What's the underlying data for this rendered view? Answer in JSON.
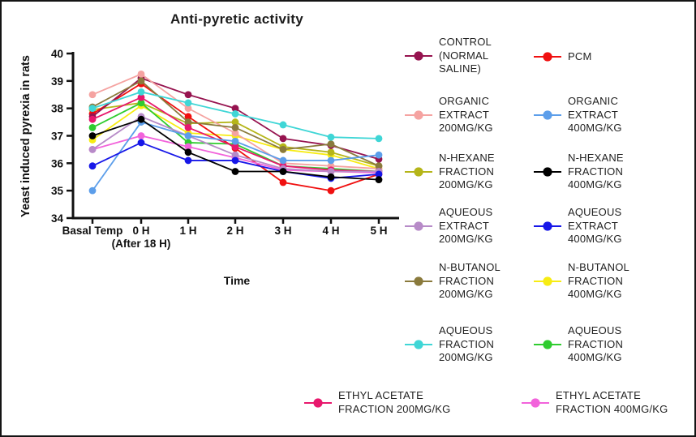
{
  "chart_data": {
    "type": "line",
    "title": "Anti-pyretic activity",
    "xlabel": "Time",
    "ylabel": "Yeast induced pyrexia in rats",
    "ylim": [
      34,
      40
    ],
    "yticks": [
      40,
      39,
      38,
      37,
      36,
      35,
      34
    ],
    "grid": false,
    "legend_position": "right",
    "categories": [
      "Basal Temp",
      "0 H (After 18 H)",
      "1 H",
      "2 H",
      "3 H",
      "4 H",
      "5 H"
    ],
    "xtick_lines": [
      [
        "Basal Temp"
      ],
      [
        "0 H",
        "(After 18 H)"
      ],
      [
        "1 H"
      ],
      [
        "2 H"
      ],
      [
        "3 H"
      ],
      [
        "4 H"
      ],
      [
        "5 H"
      ]
    ],
    "series": [
      {
        "key": "control",
        "name": "CONTROL (NORMAL SALINE)",
        "color": "#96134F",
        "values": [
          37.7,
          39.1,
          38.5,
          38.0,
          36.9,
          36.65,
          36.15
        ]
      },
      {
        "key": "pcm",
        "name": "PCM",
        "color": "#F01010",
        "values": [
          37.8,
          38.9,
          37.7,
          36.55,
          35.3,
          35.0,
          35.6
        ]
      },
      {
        "key": "organic200",
        "name": "ORGANIC EXTRACT 200MG/KG",
        "color": "#F5A3A1",
        "values": [
          38.5,
          39.25,
          38.0,
          37.1,
          36.0,
          35.9,
          35.8
        ]
      },
      {
        "key": "organic400",
        "name": "ORGANIC EXTRACT 400MG/KG",
        "color": "#5C9EEA",
        "values": [
          35.0,
          37.5,
          37.0,
          36.8,
          36.1,
          36.1,
          36.3
        ]
      },
      {
        "key": "nhexane200",
        "name": "N-HEXANE FRACTION 200MG/KG",
        "color": "#B5B519",
        "values": [
          37.95,
          38.2,
          37.45,
          37.5,
          36.6,
          36.4,
          35.9
        ]
      },
      {
        "key": "nhexane400",
        "name": "N-HEXANE FRACTION 400MG/KG",
        "color": "#000000",
        "values": [
          37.0,
          37.6,
          36.4,
          35.7,
          35.7,
          35.5,
          35.4
        ]
      },
      {
        "key": "aqextract200",
        "name": "AQUEOUS EXTRACT 200MG/KG",
        "color": "#B78BC8",
        "values": [
          36.5,
          37.7,
          37.0,
          36.3,
          35.8,
          35.7,
          35.7
        ]
      },
      {
        "key": "aqextract400",
        "name": "AQUEOUS EXTRACT 400MG/KG",
        "color": "#1717E8",
        "values": [
          35.9,
          36.75,
          36.1,
          36.1,
          35.7,
          35.45,
          35.6
        ]
      },
      {
        "key": "nbutanol200",
        "name": "N-BUTANOL FRACTION 200MG/KG",
        "color": "#8A7A3C",
        "values": [
          38.05,
          39.0,
          37.5,
          37.3,
          36.5,
          36.7,
          35.9
        ]
      },
      {
        "key": "nbutanol400",
        "name": "N-BUTANOL FRACTION 400MG/KG",
        "color": "#F7EC13",
        "values": [
          36.85,
          38.1,
          37.1,
          37.0,
          36.5,
          36.3,
          35.8
        ]
      },
      {
        "key": "aqfraction200",
        "name": "AQUEOUS FRACTION 200MG/KG",
        "color": "#3FD6D6",
        "values": [
          38.0,
          38.6,
          38.2,
          37.8,
          37.4,
          36.95,
          36.9
        ]
      },
      {
        "key": "aqfraction400",
        "name": "AQUEOUS FRACTION 400MG/KG",
        "color": "#2FCC2F",
        "values": [
          37.3,
          38.2,
          36.75,
          36.7,
          35.9,
          35.8,
          35.7
        ]
      },
      {
        "key": "ethyl200",
        "name": "ETHYL ACETATE FRACTION 200MG/KG",
        "color": "#E8186D",
        "values": [
          37.6,
          38.4,
          37.3,
          36.6,
          35.9,
          35.75,
          35.7
        ]
      },
      {
        "key": "ethyl400",
        "name": "ETHYL ACETATE FRACTION 400MG/KG",
        "color": "#F263DB",
        "values": [
          36.5,
          37.0,
          36.6,
          36.2,
          35.75,
          35.7,
          35.65
        ]
      }
    ]
  },
  "legend": {
    "items": [
      {
        "key": "control",
        "label": "CONTROL\n(NORMAL\nSALINE)"
      },
      {
        "key": "pcm",
        "label": "PCM"
      },
      {
        "key": "organic200",
        "label": "ORGANIC\nEXTRACT\n200MG/KG"
      },
      {
        "key": "organic400",
        "label": "ORGANIC\nEXTRACT\n400MG/KG"
      },
      {
        "key": "nhexane200",
        "label": "N-HEXANE\nFRACTION\n200MG/KG"
      },
      {
        "key": "nhexane400",
        "label": "N-HEXANE\nFRACTION\n400MG/KG"
      },
      {
        "key": "aqextract200",
        "label": "AQUEOUS\nEXTRACT\n200MG/KG"
      },
      {
        "key": "aqextract400",
        "label": "AQUEOUS\nEXTRACT\n400MG/KG"
      },
      {
        "key": "nbutanol200",
        "label": "N-BUTANOL\nFRACTION\n200MG/KG"
      },
      {
        "key": "nbutanol400",
        "label": "N-BUTANOL\nFRACTION\n400MG/KG"
      },
      {
        "key": "aqfraction200",
        "label": "AQUEOUS\nFRACTION\n200MG/KG"
      },
      {
        "key": "aqfraction400",
        "label": "AQUEOUS\nFRACTION\n400MG/KG"
      },
      {
        "key": "ethyl200",
        "label": "ETHYL ACETATE\nFRACTION 200MG/KG"
      },
      {
        "key": "ethyl400",
        "label": "ETHYL ACETATE\nFRACTION 400MG/KG"
      }
    ]
  }
}
